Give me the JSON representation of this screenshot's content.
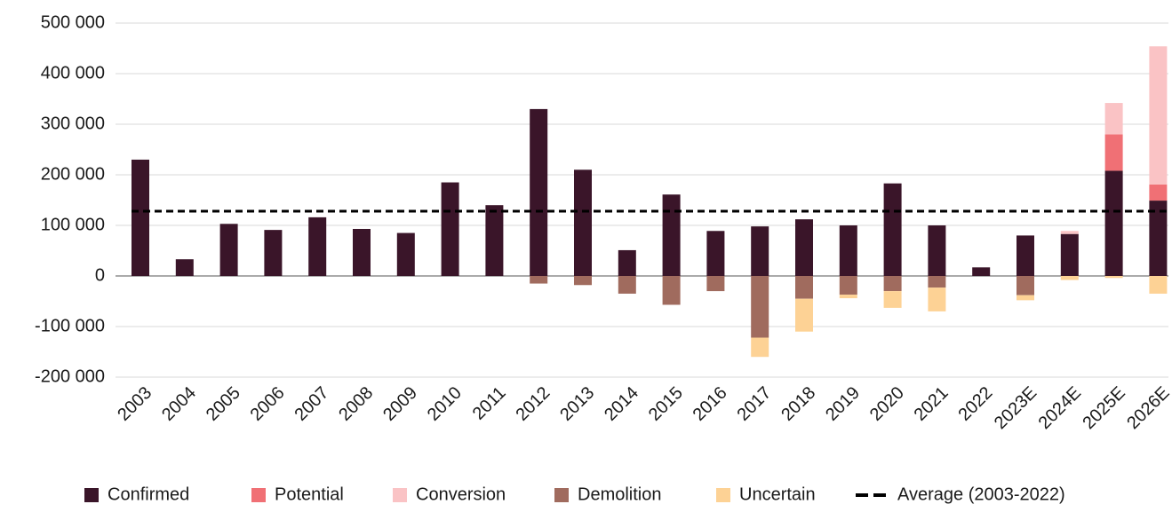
{
  "chart_data": {
    "type": "stacked-bar",
    "categories": [
      "2003",
      "2004",
      "2005",
      "2006",
      "2007",
      "2008",
      "2009",
      "2010",
      "2011",
      "2012",
      "2013",
      "2014",
      "2015",
      "2016",
      "2017",
      "2018",
      "2019",
      "2020",
      "2021",
      "2022",
      "2023E",
      "2024E",
      "2025E",
      "2026E"
    ],
    "series": [
      {
        "name": "Confirmed",
        "color": "#3a1529",
        "values": [
          230000,
          33000,
          103000,
          91000,
          116000,
          93000,
          85000,
          185000,
          140000,
          330000,
          210000,
          51000,
          161000,
          89000,
          98000,
          112000,
          100000,
          183000,
          100000,
          17000,
          80000,
          83000,
          208000,
          149000
        ]
      },
      {
        "name": "Potential",
        "color": "#f07075",
        "values": [
          0,
          0,
          0,
          0,
          0,
          0,
          0,
          0,
          0,
          0,
          0,
          0,
          0,
          0,
          0,
          0,
          0,
          0,
          0,
          0,
          0,
          0,
          72000,
          32000
        ]
      },
      {
        "name": "Conversion",
        "color": "#fac3c5",
        "values": [
          0,
          0,
          0,
          0,
          0,
          0,
          0,
          0,
          0,
          0,
          0,
          0,
          0,
          0,
          0,
          0,
          0,
          0,
          0,
          0,
          0,
          6000,
          62000,
          273000
        ]
      },
      {
        "name": "Demolition",
        "color": "#a06b5e",
        "values": [
          0,
          0,
          0,
          0,
          0,
          0,
          0,
          0,
          0,
          -15000,
          -18000,
          -35000,
          -57000,
          -30000,
          -122000,
          -45000,
          -37000,
          -30000,
          -23000,
          0,
          -38000,
          0,
          0,
          0
        ]
      },
      {
        "name": "Uncertain",
        "color": "#fdd295",
        "values": [
          0,
          0,
          0,
          0,
          0,
          0,
          0,
          0,
          0,
          0,
          0,
          0,
          0,
          0,
          -38000,
          -65000,
          -7000,
          -33000,
          -47000,
          0,
          -10000,
          -8000,
          -4000,
          -35000
        ]
      }
    ],
    "lines": [
      {
        "name": "Average (2003-2022)",
        "value": 128000,
        "color": "#000000",
        "dashed": true
      }
    ],
    "ylim": [
      -200000,
      500000
    ],
    "yticks": [
      {
        "value": -200000,
        "label": "-200 000"
      },
      {
        "value": -100000,
        "label": "-100 000"
      },
      0,
      {
        "value": 100000,
        "label": "100 000"
      },
      {
        "value": 200000,
        "label": "200 000"
      },
      {
        "value": 300000,
        "label": "300 000"
      },
      {
        "value": 400000,
        "label": "400 000"
      },
      {
        "value": 500000,
        "label": "500 000"
      }
    ],
    "grid": true,
    "legend": "bottom"
  }
}
